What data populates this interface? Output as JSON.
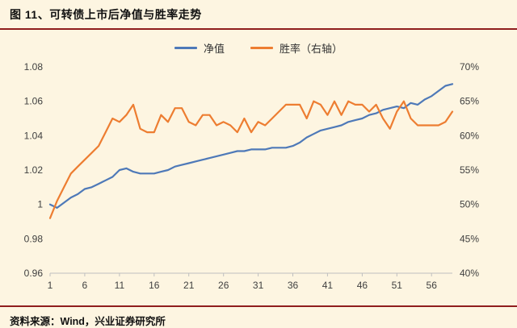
{
  "header": {
    "title": "图 11、可转债上市后净值与胜率走势"
  },
  "footer": {
    "source": "资料来源：Wind，兴业证券研究所"
  },
  "colors": {
    "background": "#FDF5E1",
    "accent_line": "#8F1D1D",
    "netvalue_line": "#4E79B8",
    "winrate_line": "#ED7D31",
    "axis_text": "#3F3F3F",
    "axis_line": "#BFBFBF"
  },
  "chart_data": {
    "type": "line",
    "title": "可转债上市后净值与胜率走势",
    "legend_position": "top",
    "grid": false,
    "x_label": "",
    "x_ticks": [
      1,
      6,
      11,
      16,
      21,
      26,
      31,
      36,
      41,
      46,
      51,
      56
    ],
    "left_axis": {
      "min": 0.96,
      "max": 1.08,
      "ticks": [
        "0.96",
        "0.98",
        "1",
        "1.02",
        "1.04",
        "1.06",
        "1.08"
      ]
    },
    "right_axis": {
      "min": 40,
      "max": 70,
      "ticks": [
        "40%",
        "45%",
        "50%",
        "55%",
        "60%",
        "65%",
        "70%"
      ]
    },
    "x": [
      1,
      2,
      3,
      4,
      5,
      6,
      7,
      8,
      9,
      10,
      11,
      12,
      13,
      14,
      15,
      16,
      17,
      18,
      19,
      20,
      21,
      22,
      23,
      24,
      25,
      26,
      27,
      28,
      29,
      30,
      31,
      32,
      33,
      34,
      35,
      36,
      37,
      38,
      39,
      40,
      41,
      42,
      43,
      44,
      45,
      46,
      47,
      48,
      49,
      50,
      51,
      52,
      53,
      54,
      55,
      56,
      57,
      58,
      59
    ],
    "series": [
      {
        "name": "净值",
        "axis": "left",
        "color": "#4E79B8",
        "values": [
          1.0,
          0.998,
          1.001,
          1.004,
          1.006,
          1.009,
          1.01,
          1.012,
          1.014,
          1.016,
          1.02,
          1.021,
          1.019,
          1.018,
          1.018,
          1.018,
          1.019,
          1.02,
          1.022,
          1.023,
          1.024,
          1.025,
          1.026,
          1.027,
          1.028,
          1.029,
          1.03,
          1.031,
          1.031,
          1.032,
          1.032,
          1.032,
          1.033,
          1.033,
          1.033,
          1.034,
          1.036,
          1.039,
          1.041,
          1.043,
          1.044,
          1.045,
          1.046,
          1.048,
          1.049,
          1.05,
          1.052,
          1.053,
          1.055,
          1.056,
          1.057,
          1.056,
          1.059,
          1.058,
          1.061,
          1.063,
          1.066,
          1.069,
          1.07
        ]
      },
      {
        "name": "胜率（右轴）",
        "axis": "right",
        "color": "#ED7D31",
        "values": [
          48,
          50.5,
          52.5,
          54.5,
          55.5,
          56.5,
          57.5,
          58.5,
          60.5,
          62.5,
          62,
          63,
          64.5,
          61,
          60.5,
          60.5,
          63,
          62,
          64,
          64,
          62,
          61.5,
          63,
          63,
          61.5,
          62,
          61.5,
          60.5,
          62.5,
          60.5,
          62,
          61.5,
          62.5,
          63.5,
          64.5,
          64.5,
          64.5,
          62.5,
          65,
          64.5,
          63,
          65,
          63,
          65,
          64.5,
          64.5,
          63.5,
          64.5,
          62.5,
          61,
          63.5,
          65,
          62.5,
          61.5,
          61.5,
          61.5,
          61.5,
          62,
          63.5
        ]
      }
    ]
  }
}
